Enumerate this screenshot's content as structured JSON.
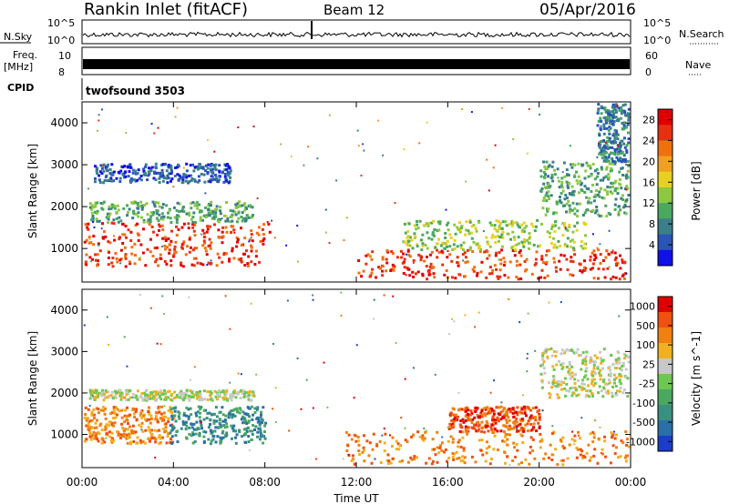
{
  "header": {
    "title": "Rankin Inlet (fitACF)",
    "beam": "Beam 12",
    "date": "05/Apr/2016"
  },
  "panels": {
    "nsky": {
      "label": "N.Sky",
      "left_ticks": [
        "10^5",
        "10^0"
      ],
      "right_ticks": [
        "10^5",
        "10^0"
      ],
      "right_label": "N.Search"
    },
    "freq": {
      "label_line1": "Freq.",
      "label_line2": "[MHz]",
      "left_ticks": [
        "10",
        "8"
      ],
      "right_ticks": [
        "60",
        "0"
      ],
      "right_label": "Nave"
    },
    "cpid": {
      "label": "CPID",
      "value": "twofsound 3503"
    }
  },
  "chart_data": [
    {
      "type": "heatmap",
      "name": "power",
      "ylabel": "Slant Range [km]",
      "ylim": [
        200,
        4500
      ],
      "yticks": [
        "1000",
        "2000",
        "3000",
        "4000"
      ],
      "colorbar": {
        "label": "Power [dB]",
        "ticks": [
          "4",
          "8",
          "12",
          "16",
          "20",
          "24",
          "28"
        ],
        "colors": [
          "#1010e8",
          "#2a55b8",
          "#3a7f8a",
          "#4aa860",
          "#8cc840",
          "#e8d020",
          "#f0a020",
          "#f07010",
          "#e83010",
          "#e00000"
        ]
      },
      "bands": [
        {
          "x": [
            0,
            8.2
          ],
          "y": [
            600,
            1650
          ],
          "level": 8
        },
        {
          "x": [
            0.3,
            7.5
          ],
          "y": [
            1650,
            2150
          ],
          "level": 3
        },
        {
          "x": [
            0.5,
            6.5
          ],
          "y": [
            2600,
            3050
          ],
          "level": 1
        },
        {
          "x": [
            12,
            24
          ],
          "y": [
            300,
            1000
          ],
          "level": 8
        },
        {
          "x": [
            14,
            22
          ],
          "y": [
            1000,
            1700
          ],
          "level": 4
        },
        {
          "x": [
            20,
            24
          ],
          "y": [
            1800,
            3100
          ],
          "level": 3
        },
        {
          "x": [
            22.5,
            24
          ],
          "y": [
            3100,
            4500
          ],
          "level": 2
        }
      ]
    },
    {
      "type": "heatmap",
      "name": "velocity",
      "xlabel": "Time UT",
      "ylabel": "Slant Range [km]",
      "xlim": [
        0,
        24
      ],
      "ylim": [
        200,
        4500
      ],
      "xticks": [
        "00:00",
        "04:00",
        "08:00",
        "12:00",
        "16:00",
        "20:00",
        "00:00"
      ],
      "yticks": [
        "1000",
        "2000",
        "3000",
        "4000"
      ],
      "colorbar": {
        "label": "Velocity [m s^-1]",
        "ticks": [
          "1000",
          "500",
          "100",
          "25",
          "-25",
          "-100",
          "-500",
          "-1000"
        ],
        "colors": [
          "#1a3ec8",
          "#2a70a8",
          "#3a9080",
          "#4aa860",
          "#6cc850",
          "#c8c8c8",
          "#f0b020",
          "#f08010",
          "#f05010",
          "#e00000"
        ]
      },
      "bands": [
        {
          "x": [
            0,
            4
          ],
          "y": [
            800,
            1700
          ],
          "level": 7
        },
        {
          "x": [
            3.8,
            8
          ],
          "y": [
            800,
            1700
          ],
          "level": 2
        },
        {
          "x": [
            11.5,
            24
          ],
          "y": [
            300,
            1100
          ],
          "level": 7
        },
        {
          "x": [
            16,
            20
          ],
          "y": [
            1100,
            1700
          ],
          "level": 8
        },
        {
          "x": [
            20,
            24
          ],
          "y": [
            1900,
            3100
          ],
          "level": 5
        },
        {
          "x": [
            0.3,
            7.5
          ],
          "y": [
            1850,
            2100
          ],
          "level": 5
        }
      ]
    }
  ]
}
